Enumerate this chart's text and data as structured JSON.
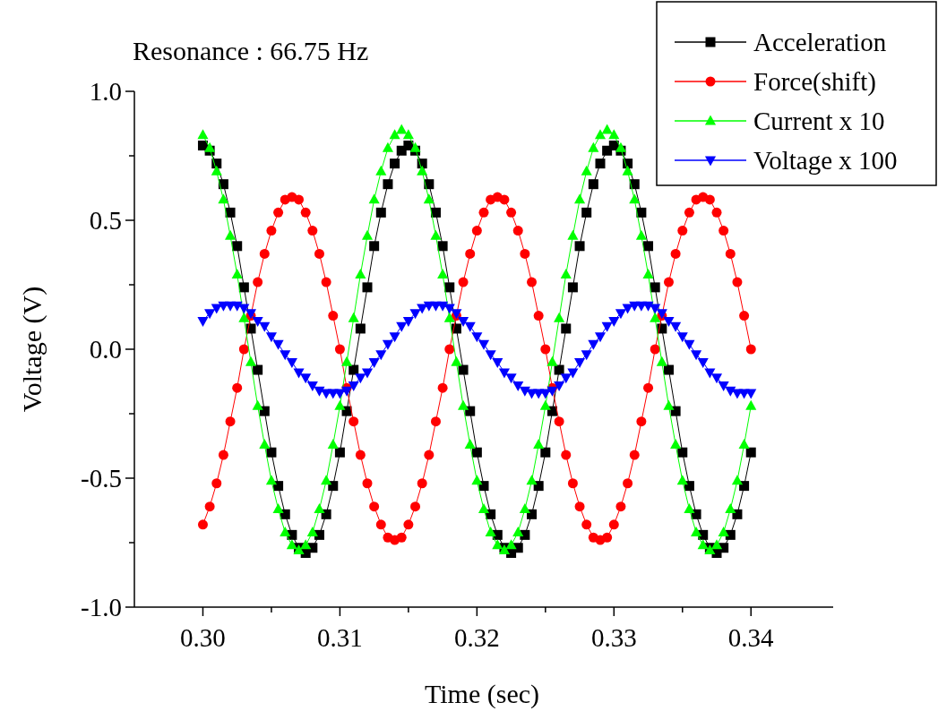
{
  "chart_data": {
    "type": "line",
    "title": "Resonance : 66.75 Hz",
    "xlabel": "Time (sec)",
    "ylabel": "Voltage (V)",
    "x": [
      0.3,
      0.3005,
      0.301,
      0.3015,
      0.302,
      0.3025,
      0.303,
      0.3035,
      0.304,
      0.3045,
      0.305,
      0.3055,
      0.306,
      0.3065,
      0.307,
      0.3075,
      0.308,
      0.3085,
      0.309,
      0.3095,
      0.31,
      0.3105,
      0.311,
      0.3115,
      0.312,
      0.3125,
      0.313,
      0.3135,
      0.314,
      0.3145,
      0.315,
      0.3155,
      0.316,
      0.3165,
      0.317,
      0.3175,
      0.318,
      0.3185,
      0.319,
      0.3195,
      0.32,
      0.3205,
      0.321,
      0.3215,
      0.322,
      0.3225,
      0.323,
      0.3235,
      0.324,
      0.3245,
      0.325,
      0.3255,
      0.326,
      0.3265,
      0.327,
      0.3275,
      0.328,
      0.3285,
      0.329,
      0.3295,
      0.33,
      0.3305,
      0.331,
      0.3315,
      0.332,
      0.3325,
      0.333,
      0.3335,
      0.334,
      0.3345,
      0.335,
      0.3355,
      0.336,
      0.3365,
      0.337,
      0.3375,
      0.338,
      0.3385,
      0.339,
      0.3395,
      0.34
    ],
    "series": [
      {
        "name": "Acceleration",
        "color": "#000000",
        "marker": "square",
        "values": [
          0.79,
          0.77,
          0.72,
          0.64,
          0.53,
          0.4,
          0.24,
          0.08,
          -0.08,
          -0.24,
          -0.4,
          -0.53,
          -0.64,
          -0.72,
          -0.77,
          -0.79,
          -0.77,
          -0.72,
          -0.64,
          -0.53,
          -0.4,
          -0.24,
          -0.08,
          0.08,
          0.24,
          0.4,
          0.53,
          0.64,
          0.72,
          0.77,
          0.79,
          0.77,
          0.72,
          0.64,
          0.53,
          0.4,
          0.24,
          0.08,
          -0.08,
          -0.24,
          -0.4,
          -0.53,
          -0.64,
          -0.72,
          -0.77,
          -0.79,
          -0.77,
          -0.72,
          -0.64,
          -0.53,
          -0.4,
          -0.24,
          -0.08,
          0.08,
          0.24,
          0.4,
          0.53,
          0.64,
          0.72,
          0.77,
          0.79,
          0.77,
          0.72,
          0.64,
          0.53,
          0.4,
          0.24,
          0.08,
          -0.08,
          -0.24,
          -0.4,
          -0.53,
          -0.64,
          -0.72,
          -0.77,
          -0.79,
          -0.77,
          -0.72,
          -0.64,
          -0.53,
          -0.4
        ]
      },
      {
        "name": "Force(shift)",
        "color": "#ff0000",
        "marker": "circle",
        "values": [
          -0.68,
          -0.61,
          -0.52,
          -0.41,
          -0.28,
          -0.15,
          0.0,
          0.13,
          0.26,
          0.37,
          0.46,
          0.53,
          0.58,
          0.59,
          0.58,
          0.53,
          0.46,
          0.37,
          0.26,
          0.13,
          0.0,
          -0.15,
          -0.28,
          -0.41,
          -0.52,
          -0.61,
          -0.68,
          -0.73,
          -0.74,
          -0.73,
          -0.68,
          -0.61,
          -0.52,
          -0.41,
          -0.28,
          -0.15,
          0.0,
          0.13,
          0.26,
          0.37,
          0.46,
          0.53,
          0.58,
          0.59,
          0.58,
          0.53,
          0.46,
          0.37,
          0.26,
          0.13,
          0.0,
          -0.15,
          -0.28,
          -0.41,
          -0.52,
          -0.61,
          -0.68,
          -0.73,
          -0.74,
          -0.73,
          -0.68,
          -0.61,
          -0.52,
          -0.41,
          -0.28,
          -0.15,
          0.0,
          0.13,
          0.26,
          0.37,
          0.46,
          0.53,
          0.58,
          0.59,
          0.58,
          0.53,
          0.46,
          0.37,
          0.26,
          0.13,
          0.0
        ]
      },
      {
        "name": "Current x 10",
        "color": "#00ff00",
        "marker": "triangle",
        "values": [
          0.83,
          0.78,
          0.69,
          0.58,
          0.44,
          0.29,
          0.12,
          -0.05,
          -0.22,
          -0.37,
          -0.51,
          -0.62,
          -0.71,
          -0.76,
          -0.78,
          -0.76,
          -0.71,
          -0.62,
          -0.51,
          -0.37,
          -0.22,
          -0.05,
          0.12,
          0.29,
          0.44,
          0.58,
          0.69,
          0.78,
          0.83,
          0.85,
          0.83,
          0.78,
          0.69,
          0.58,
          0.44,
          0.29,
          0.12,
          -0.05,
          -0.22,
          -0.37,
          -0.51,
          -0.62,
          -0.71,
          -0.76,
          -0.78,
          -0.76,
          -0.71,
          -0.62,
          -0.51,
          -0.37,
          -0.22,
          -0.05,
          0.12,
          0.29,
          0.44,
          0.58,
          0.69,
          0.78,
          0.83,
          0.85,
          0.83,
          0.78,
          0.69,
          0.58,
          0.44,
          0.29,
          0.12,
          -0.05,
          -0.22,
          -0.37,
          -0.51,
          -0.62,
          -0.71,
          -0.76,
          -0.78,
          -0.76,
          -0.71,
          -0.62,
          -0.51,
          -0.37,
          -0.22
        ]
      },
      {
        "name": "Voltage x 100",
        "color": "#0000ff",
        "marker": "triangle-down",
        "values": [
          0.11,
          0.14,
          0.16,
          0.17,
          0.17,
          0.17,
          0.16,
          0.14,
          0.11,
          0.09,
          0.05,
          0.02,
          -0.02,
          -0.05,
          -0.09,
          -0.11,
          -0.14,
          -0.16,
          -0.17,
          -0.17,
          -0.17,
          -0.16,
          -0.14,
          -0.11,
          -0.09,
          -0.05,
          -0.02,
          0.02,
          0.05,
          0.09,
          0.11,
          0.14,
          0.16,
          0.17,
          0.17,
          0.17,
          0.16,
          0.14,
          0.11,
          0.09,
          0.05,
          0.02,
          -0.02,
          -0.05,
          -0.09,
          -0.11,
          -0.14,
          -0.16,
          -0.17,
          -0.17,
          -0.17,
          -0.16,
          -0.14,
          -0.11,
          -0.09,
          -0.05,
          -0.02,
          0.02,
          0.05,
          0.09,
          0.11,
          0.14,
          0.16,
          0.17,
          0.17,
          0.17,
          0.16,
          0.14,
          0.11,
          0.09,
          0.05,
          0.02,
          -0.02,
          -0.05,
          -0.09,
          -0.11,
          -0.14,
          -0.16,
          -0.17,
          -0.17,
          -0.17
        ]
      }
    ],
    "xlim": [
      0.295,
      0.346
    ],
    "ylim": [
      -1,
      1
    ],
    "xticks": [
      {
        "value": 0.3,
        "label": "0.30"
      },
      {
        "value": 0.305,
        "label": null
      },
      {
        "value": 0.31,
        "label": "0.31"
      },
      {
        "value": 0.315,
        "label": null
      },
      {
        "value": 0.32,
        "label": "0.32"
      },
      {
        "value": 0.325,
        "label": null
      },
      {
        "value": 0.33,
        "label": "0.33"
      },
      {
        "value": 0.335,
        "label": null
      },
      {
        "value": 0.34,
        "label": "0.34"
      }
    ],
    "yticks": [
      {
        "value": -1,
        "label": "-1.0"
      },
      {
        "value": -0.75,
        "label": null
      },
      {
        "value": -0.5,
        "label": "-0.5"
      },
      {
        "value": -0.25,
        "label": null
      },
      {
        "value": 0,
        "label": "0.0"
      },
      {
        "value": 0.25,
        "label": null
      },
      {
        "value": 0.5,
        "label": "0.5"
      },
      {
        "value": 0.75,
        "label": null
      },
      {
        "value": 1,
        "label": "1.0"
      }
    ],
    "grid": false,
    "legend": "top right"
  }
}
